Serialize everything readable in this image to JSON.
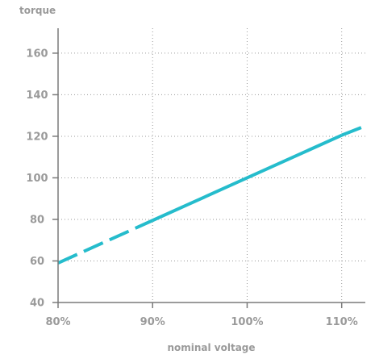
{
  "chart_data": {
    "type": "line",
    "xlabel": "nominal voltage",
    "ylabel": "torque",
    "x_unit": "%",
    "xlim": [
      80,
      112.5
    ],
    "ylim": [
      40,
      172
    ],
    "x_ticks": [
      "80%",
      "90%",
      "100%",
      "110%"
    ],
    "y_ticks": [
      "40",
      "60",
      "80",
      "100",
      "120",
      "140",
      "160"
    ],
    "grid": true,
    "grid_style": "dotted",
    "series": [
      {
        "x": [
          80,
          90,
          100,
          110,
          112.5
        ],
        "y": [
          59,
          79.5,
          100,
          120.5,
          125
        ],
        "color": "#25bccc",
        "style": "dashed 80–90%, solid 90–110%, dashed 110–112.5%"
      }
    ]
  }
}
